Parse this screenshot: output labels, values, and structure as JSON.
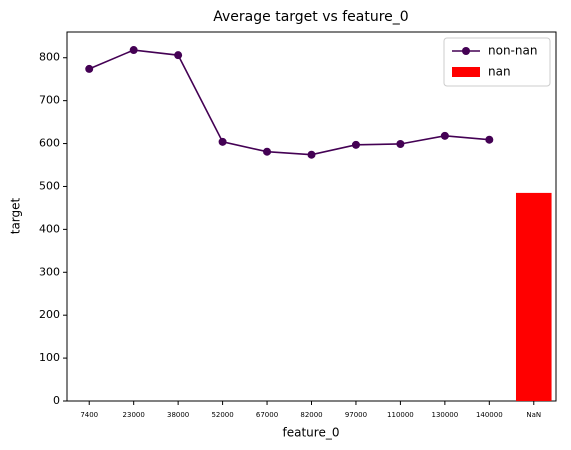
{
  "chart_data": {
    "type": "line",
    "title": "Average target vs feature_0",
    "xlabel": "feature_0",
    "ylabel": "target",
    "categories": [
      "7400",
      "23000",
      "38000",
      "52000",
      "67000",
      "82000",
      "97000",
      "110000",
      "130000",
      "140000",
      "NaN"
    ],
    "series": [
      {
        "name": "non-nan",
        "color": "#440154",
        "kind": "line",
        "values": [
          774,
          818,
          806,
          604,
          581,
          574,
          597,
          599,
          618,
          609,
          null
        ]
      },
      {
        "name": "nan",
        "color": "#ff0000",
        "kind": "bar",
        "values": [
          null,
          null,
          null,
          null,
          null,
          null,
          null,
          null,
          null,
          null,
          485
        ]
      }
    ],
    "ylim": [
      0,
      860
    ],
    "yticks": [
      0,
      100,
      200,
      300,
      400,
      500,
      600,
      700,
      800
    ],
    "grid": false,
    "legend": "upper right"
  }
}
